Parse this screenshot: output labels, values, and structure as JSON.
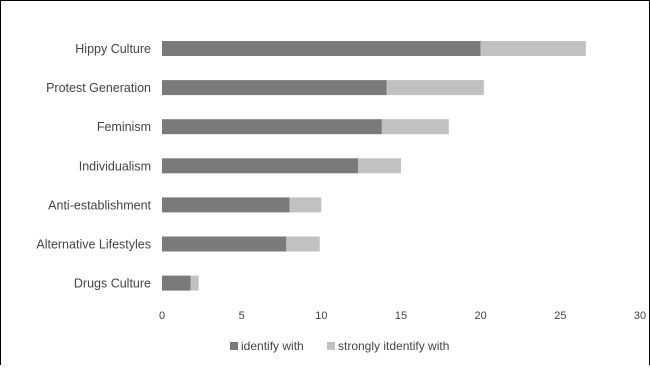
{
  "chart_data": {
    "type": "bar",
    "orientation": "horizontal",
    "stacked": true,
    "categories": [
      "Hippy Culture",
      "Protest Generation",
      "Feminism",
      "Individualism",
      "Anti-establishment",
      "Alternative Lifestyles",
      "Drugs Culture"
    ],
    "series": [
      {
        "name": "identify with",
        "values": [
          20,
          14.1,
          13.8,
          12.3,
          8.0,
          7.8,
          1.8
        ],
        "color": "#7a7a7a"
      },
      {
        "name": "strongly itdentify with",
        "values": [
          6.6,
          6.1,
          4.2,
          2.7,
          2.0,
          2.1,
          0.5
        ],
        "color": "#c1c1c1"
      }
    ],
    "xlim": [
      0,
      30
    ],
    "xticks": [
      "0",
      "5",
      "10",
      "15",
      "20",
      "25",
      "30"
    ],
    "xlabel": "",
    "ylabel": "",
    "title": "",
    "grid": false,
    "legend_position": "bottom"
  }
}
